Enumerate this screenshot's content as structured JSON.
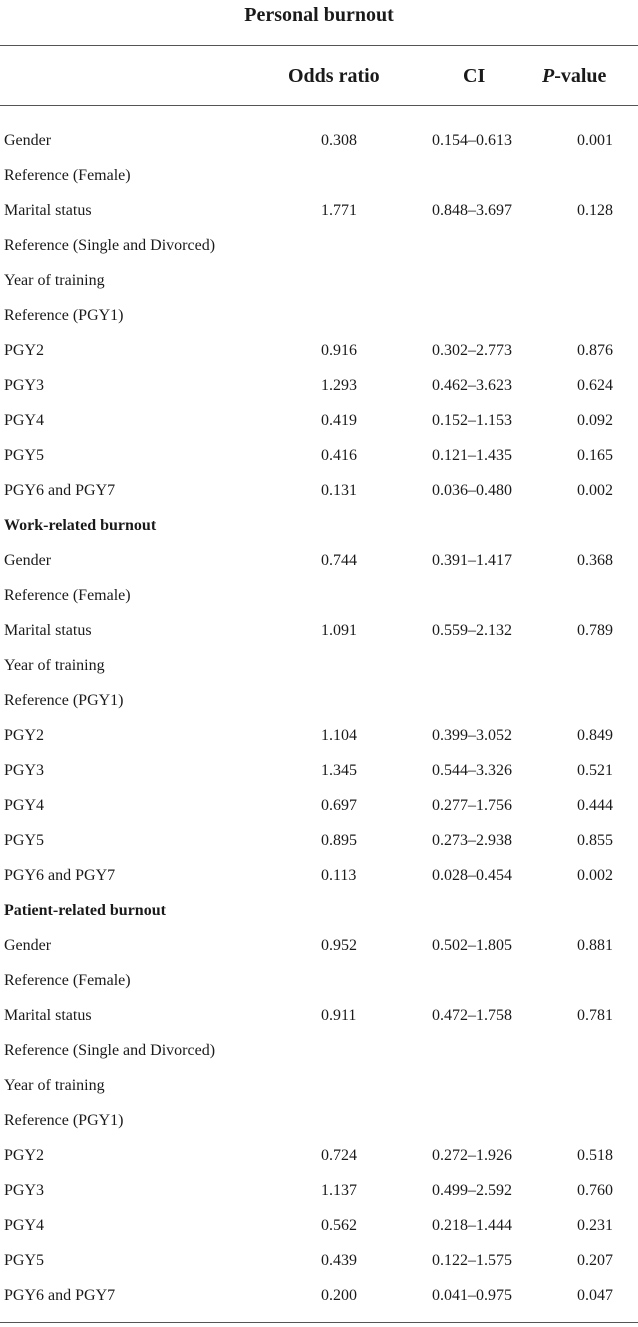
{
  "table": {
    "title": "Personal burnout",
    "columns": {
      "odds_ratio": "Odds ratio",
      "ci": "CI",
      "p_value_italic": "P",
      "p_value_rest": "-value"
    },
    "rows": [
      {
        "type": "data",
        "label": "Gender",
        "odds_ratio": "0.308",
        "ci": "0.154–0.613",
        "p": "0.001"
      },
      {
        "type": "ref",
        "label": "Reference (Female)"
      },
      {
        "type": "data",
        "label": "Marital status",
        "odds_ratio": "1.771",
        "ci": "0.848–3.697",
        "p": "0.128"
      },
      {
        "type": "ref",
        "label": "Reference (Single and Divorced)"
      },
      {
        "type": "ref",
        "label": "Year of training"
      },
      {
        "type": "ref",
        "label": "Reference (PGY1)"
      },
      {
        "type": "data",
        "label": "PGY2",
        "odds_ratio": "0.916",
        "ci": "0.302–2.773",
        "p": "0.876"
      },
      {
        "type": "data",
        "label": "PGY3",
        "odds_ratio": "1.293",
        "ci": "0.462–3.623",
        "p": "0.624"
      },
      {
        "type": "data",
        "label": "PGY4",
        "odds_ratio": "0.419",
        "ci": "0.152–1.153",
        "p": "0.092"
      },
      {
        "type": "data",
        "label": "PGY5",
        "odds_ratio": "0.416",
        "ci": "0.121–1.435",
        "p": "0.165"
      },
      {
        "type": "data",
        "label": "PGY6 and PGY7",
        "odds_ratio": "0.131",
        "ci": "0.036–0.480",
        "p": "0.002"
      },
      {
        "type": "section",
        "label": "Work-related burnout"
      },
      {
        "type": "data",
        "label": "Gender",
        "odds_ratio": "0.744",
        "ci": "0.391–1.417",
        "p": "0.368"
      },
      {
        "type": "ref",
        "label": "Reference (Female)"
      },
      {
        "type": "data",
        "label": "Marital status",
        "odds_ratio": "1.091",
        "ci": "0.559–2.132",
        "p": "0.789"
      },
      {
        "type": "ref",
        "label": "Year of training"
      },
      {
        "type": "ref",
        "label": "Reference (PGY1)"
      },
      {
        "type": "data",
        "label": "PGY2",
        "odds_ratio": "1.104",
        "ci": "0.399–3.052",
        "p": "0.849"
      },
      {
        "type": "data",
        "label": "PGY3",
        "odds_ratio": "1.345",
        "ci": "0.544–3.326",
        "p": "0.521"
      },
      {
        "type": "data",
        "label": "PGY4",
        "odds_ratio": "0.697",
        "ci": "0.277–1.756",
        "p": "0.444"
      },
      {
        "type": "data",
        "label": "PGY5",
        "odds_ratio": "0.895",
        "ci": "0.273–2.938",
        "p": "0.855"
      },
      {
        "type": "data",
        "label": "PGY6 and PGY7",
        "odds_ratio": "0.113",
        "ci": "0.028–0.454",
        "p": "0.002"
      },
      {
        "type": "section",
        "label": "Patient-related burnout"
      },
      {
        "type": "data",
        "label": "Gender",
        "odds_ratio": "0.952",
        "ci": "0.502–1.805",
        "p": "0.881"
      },
      {
        "type": "ref",
        "label": "Reference (Female)"
      },
      {
        "type": "data",
        "label": "Marital status",
        "odds_ratio": "0.911",
        "ci": "0.472–1.758",
        "p": "0.781"
      },
      {
        "type": "ref",
        "label": "Reference (Single and Divorced)"
      },
      {
        "type": "ref",
        "label": "Year of training"
      },
      {
        "type": "ref",
        "label": "Reference (PGY1)"
      },
      {
        "type": "data",
        "label": "PGY2",
        "odds_ratio": "0.724",
        "ci": "0.272–1.926",
        "p": "0.518"
      },
      {
        "type": "data",
        "label": "PGY3",
        "odds_ratio": "1.137",
        "ci": "0.499–2.592",
        "p": "0.760"
      },
      {
        "type": "data",
        "label": "PGY4",
        "odds_ratio": "0.562",
        "ci": "0.218–1.444",
        "p": "0.231"
      },
      {
        "type": "data",
        "label": "PGY5",
        "odds_ratio": "0.439",
        "ci": "0.122–1.575",
        "p": "0.207"
      },
      {
        "type": "data",
        "label": "PGY6 and PGY7",
        "odds_ratio": "0.200",
        "ci": "0.041–0.975",
        "p": "0.047"
      }
    ]
  }
}
